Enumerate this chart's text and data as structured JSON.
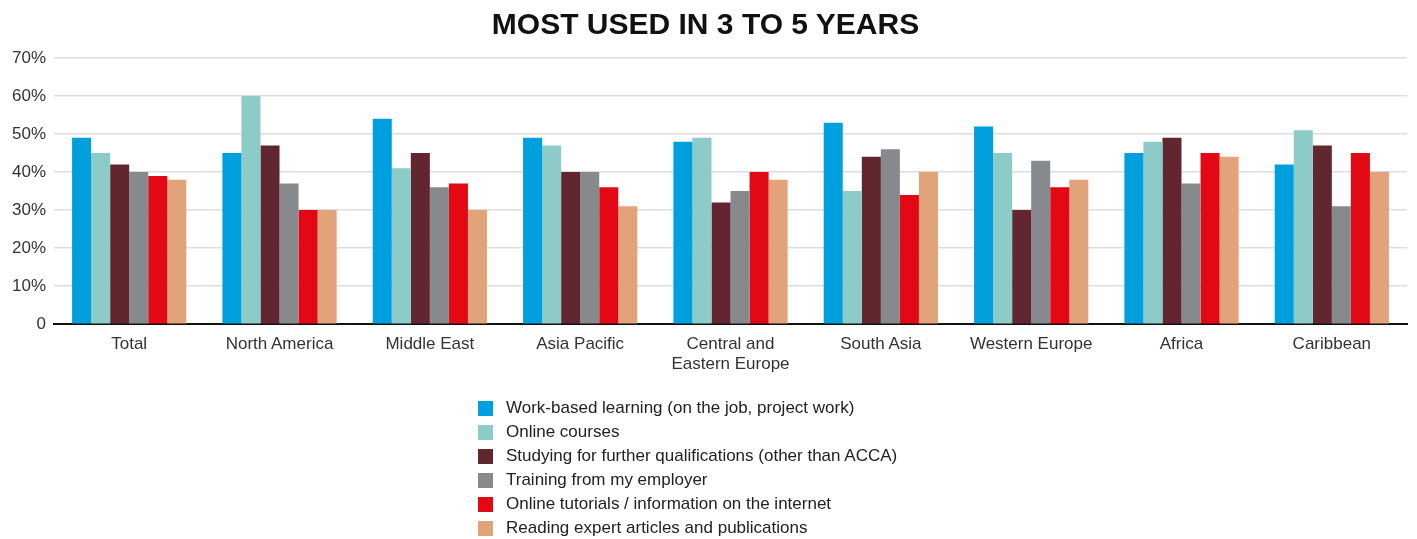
{
  "chart_data": {
    "type": "bar",
    "title": "MOST USED IN 3 TO 5 YEARS",
    "categories": [
      "Total",
      "North America",
      "Middle East",
      "Asia Pacific",
      "Central and Eastern Europe",
      "South Asia",
      "Western Europe",
      "Africa",
      "Caribbean"
    ],
    "series": [
      {
        "name": "Work-based learning (on the job, project work)",
        "color": "#00a0df",
        "values": [
          49,
          45,
          54,
          49,
          48,
          53,
          52,
          45,
          42
        ]
      },
      {
        "name": "Online courses",
        "color": "#8ccbc8",
        "values": [
          45,
          60,
          41,
          47,
          49,
          35,
          45,
          48,
          51
        ]
      },
      {
        "name": "Studying for further qualifications (other than ACCA)",
        "color": "#622630",
        "values": [
          42,
          47,
          45,
          40,
          32,
          44,
          30,
          49,
          47
        ]
      },
      {
        "name": "Training from my employer",
        "color": "#868a8c",
        "values": [
          40,
          37,
          36,
          40,
          35,
          46,
          43,
          37,
          31
        ]
      },
      {
        "name": "Online tutorials / information on the internet",
        "color": "#e30914",
        "values": [
          39,
          30,
          37,
          36,
          40,
          34,
          36,
          45,
          45
        ]
      },
      {
        "name": "Reading expert articles and publications",
        "color": "#e2a27a",
        "values": [
          38,
          30,
          30,
          31,
          38,
          40,
          38,
          44,
          40
        ]
      }
    ],
    "ylim": [
      0,
      70
    ],
    "yticks": [
      {
        "value": 0,
        "label": "0"
      },
      {
        "value": 10,
        "label": "10%"
      },
      {
        "value": 20,
        "label": "20%"
      },
      {
        "value": 30,
        "label": "30%"
      },
      {
        "value": 40,
        "label": "40%"
      },
      {
        "value": 50,
        "label": "50%"
      },
      {
        "value": 60,
        "label": "60%"
      },
      {
        "value": 70,
        "label": "70%"
      }
    ],
    "grid": "y",
    "legend": "bottom"
  }
}
